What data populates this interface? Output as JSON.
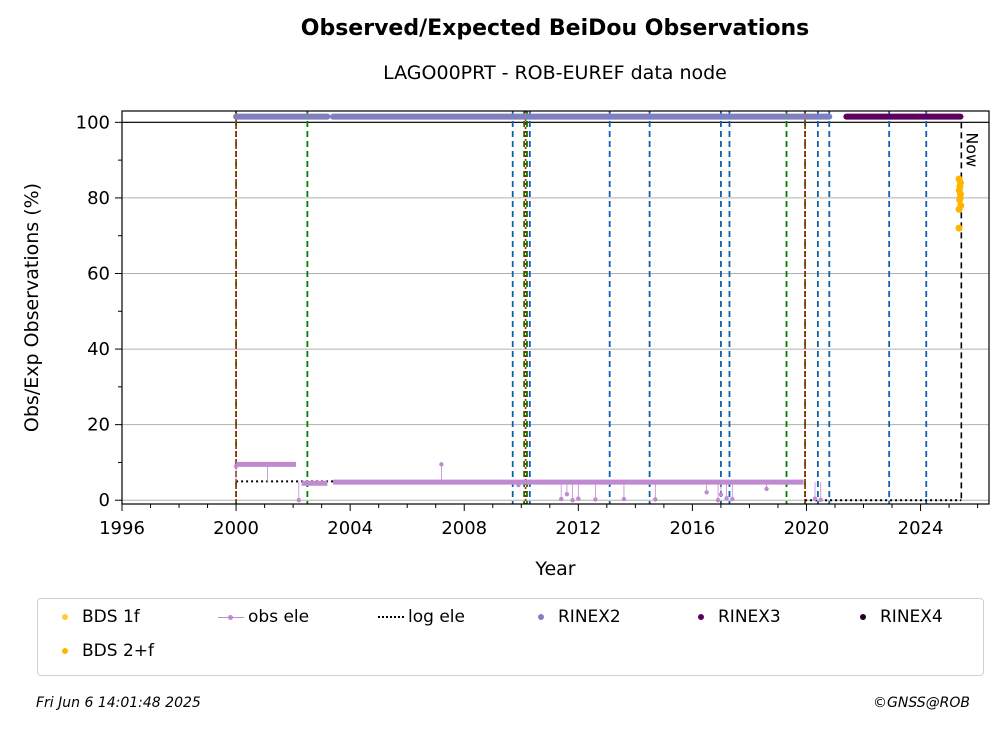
{
  "title": "Observed/Expected BeiDou Observations",
  "subtitle": "LAGO00PRT - ROB-EUREF data node",
  "footer_left": "Fri Jun  6 14:01:48 2025",
  "footer_right": "©GNSS@ROB",
  "chart_data": {
    "type": "scatter",
    "xlabel": "Year",
    "ylabel": "Obs/Exp Observations (%)",
    "xlim": [
      1996,
      2026.4
    ],
    "ylim": [
      -1,
      103
    ],
    "x_ticks": [
      "1996",
      "2000",
      "2004",
      "2008",
      "2012",
      "2016",
      "2020",
      "2024"
    ],
    "y_ticks": [
      "0",
      "20",
      "40",
      "60",
      "80",
      "100"
    ],
    "grid": "horizontal",
    "now_label": "Now",
    "now_year": 2025.43,
    "colors": {
      "bds_1f": "#ffcc33",
      "bds_2f": "#ffb400",
      "obs_ele": "#c08ad0",
      "log_ele": "#000000",
      "rinex2": "#8080c0",
      "rinex3": "#5c0060",
      "rinex4": "#200020",
      "green_line": "#008000",
      "blue_line": "#1060b0",
      "red_line": "#e00000"
    },
    "series": [
      {
        "name": "BDS 1f",
        "points": []
      },
      {
        "name": "obs ele",
        "segments": [
          {
            "x0": 2000.0,
            "x1": 2002.1,
            "y": 9.5
          },
          {
            "x0": 2002.3,
            "x1": 2003.2,
            "y": 4.5
          },
          {
            "x0": 2003.4,
            "x1": 2019.9,
            "y": 4.8
          }
        ],
        "outliers": [
          [
            2000.0,
            9.0
          ],
          [
            2001.1,
            9.5
          ],
          [
            2002.2,
            0.0
          ],
          [
            2007.2,
            9.5
          ],
          [
            2009.9,
            4.0
          ],
          [
            2011.4,
            0.3
          ],
          [
            2011.6,
            1.6
          ],
          [
            2011.8,
            0.0
          ],
          [
            2012.0,
            0.4
          ],
          [
            2012.6,
            0.2
          ],
          [
            2013.6,
            0.3
          ],
          [
            2014.7,
            0.2
          ],
          [
            2016.5,
            2.1
          ],
          [
            2016.9,
            0.0
          ],
          [
            2017.0,
            1.5
          ],
          [
            2017.2,
            0.5
          ],
          [
            2017.4,
            0.3
          ],
          [
            2018.6,
            3.0
          ],
          [
            2020.3,
            0.4
          ],
          [
            2020.5,
            0.1
          ]
        ]
      },
      {
        "name": "log ele",
        "segments": [
          {
            "x0": 2000.0,
            "x1": 2019.95,
            "y": 5.0
          },
          {
            "x0": 2019.95,
            "x1": 2025.43,
            "y": 0.0
          }
        ]
      },
      {
        "name": "RINEX2",
        "segments": [
          {
            "x0": 2000.0,
            "x1": 2003.2,
            "y": 101.5
          },
          {
            "x0": 2003.4,
            "x1": 2020.8,
            "y": 101.5
          }
        ]
      },
      {
        "name": "RINEX3",
        "segments": [
          {
            "x0": 2021.4,
            "x1": 2025.4,
            "y": 101.5
          }
        ]
      },
      {
        "name": "RINEX4",
        "segments": []
      },
      {
        "name": "BDS 2+f",
        "points": [
          [
            2025.35,
            72.0
          ],
          [
            2025.35,
            77.0
          ],
          [
            2025.37,
            79.5
          ],
          [
            2025.4,
            81.0
          ],
          [
            2025.36,
            82.0
          ],
          [
            2025.38,
            83.0
          ],
          [
            2025.4,
            84.0
          ],
          [
            2025.35,
            85.0
          ],
          [
            2025.39,
            80.0
          ],
          [
            2025.41,
            78.0
          ]
        ]
      }
    ],
    "vertical_lines": {
      "green_dashed": [
        2000.0,
        2002.5,
        2010.1,
        2010.2,
        2019.3,
        2019.95
      ],
      "blue_dashed": [
        2009.7,
        2010.3,
        2013.1,
        2014.5,
        2017.0,
        2017.3,
        2020.4,
        2020.8,
        2022.9,
        2024.2
      ],
      "red_dotted": [
        2000.0,
        2010.15,
        2019.95
      ],
      "black_dashed": [
        2025.43
      ]
    }
  },
  "legend": {
    "items": [
      {
        "label": "BDS 1f",
        "kind": "dot",
        "color": "#ffcc33"
      },
      {
        "label": "obs ele",
        "kind": "line-dot",
        "color": "#c08ad0"
      },
      {
        "label": "log ele",
        "kind": "dotline",
        "color": "#000000"
      },
      {
        "label": "RINEX2",
        "kind": "dot",
        "color": "#8080c0"
      },
      {
        "label": "RINEX3",
        "kind": "dot",
        "color": "#5c0060"
      },
      {
        "label": "RINEX4",
        "kind": "dot",
        "color": "#200020"
      },
      {
        "label": "BDS 2+f",
        "kind": "dot",
        "color": "#ffb400"
      }
    ]
  }
}
